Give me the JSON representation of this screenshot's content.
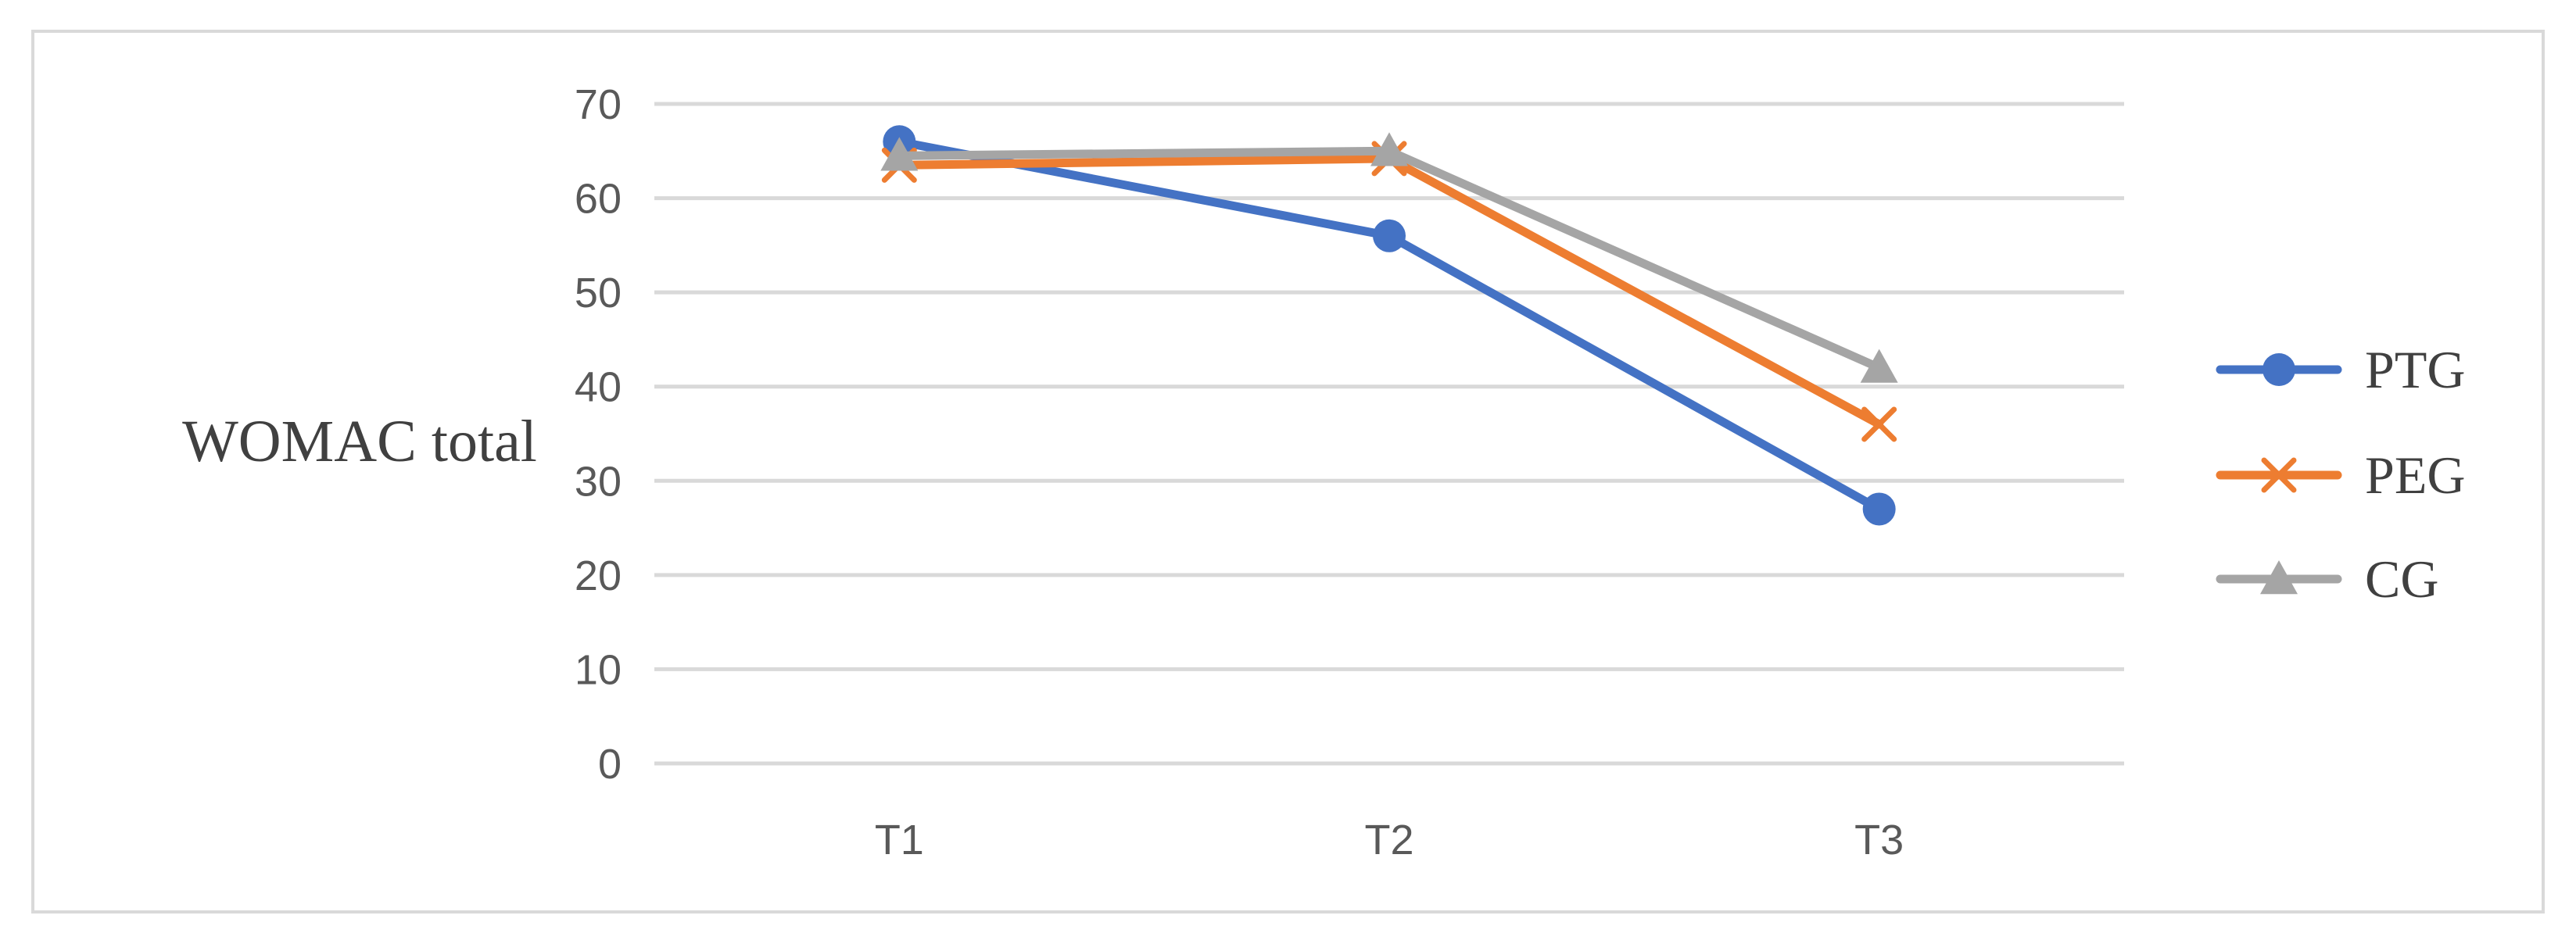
{
  "chart_data": {
    "type": "line",
    "title": "",
    "xlabel": "",
    "ylabel": "WOMAC total",
    "categories": [
      "T1",
      "T2",
      "T3"
    ],
    "ylim": [
      0,
      70
    ],
    "yticks": [
      0,
      10,
      20,
      30,
      40,
      50,
      60,
      70
    ],
    "grid": true,
    "legend_position": "right",
    "series": [
      {
        "name": "PTG",
        "values": [
          66,
          56,
          27
        ],
        "color": "#4472c4",
        "marker": "circle"
      },
      {
        "name": "PEG",
        "values": [
          63.5,
          64.2,
          36
        ],
        "color": "#ed7d31",
        "marker": "x"
      },
      {
        "name": "CG",
        "values": [
          64.5,
          65,
          42
        ],
        "color": "#a5a5a5",
        "marker": "triangle"
      }
    ]
  }
}
